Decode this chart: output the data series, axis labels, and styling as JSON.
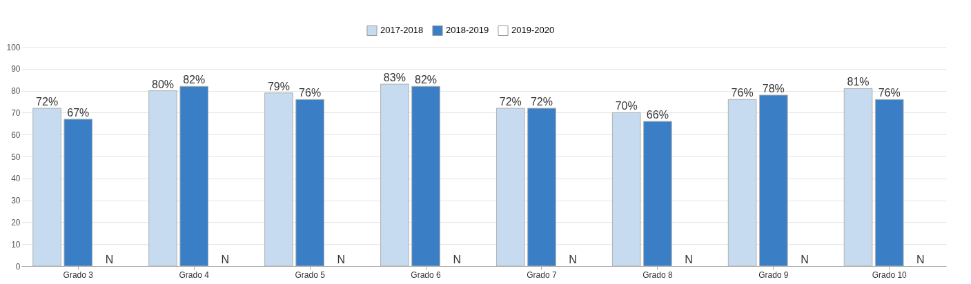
{
  "chart_data": {
    "type": "bar",
    "categories": [
      "Grado 3",
      "Grado 4",
      "Grado 5",
      "Grado 6",
      "Grado 7",
      "Grado 8",
      "Grado 9",
      "Grado 10"
    ],
    "series": [
      {
        "name": "2017-2018",
        "color": "#c6dbef",
        "values": [
          72,
          80,
          79,
          83,
          72,
          70,
          76,
          81
        ],
        "value_labels": [
          "72%",
          "80%",
          "79%",
          "83%",
          "72%",
          "70%",
          "76%",
          "81%"
        ]
      },
      {
        "name": "2018-2019",
        "color": "#3a7fc6",
        "values": [
          67,
          82,
          76,
          82,
          72,
          66,
          78,
          76
        ],
        "value_labels": [
          "67%",
          "82%",
          "76%",
          "82%",
          "72%",
          "66%",
          "78%",
          "76%"
        ]
      },
      {
        "name": "2019-2020",
        "color": "#ffffff",
        "values": [
          null,
          null,
          null,
          null,
          null,
          null,
          null,
          null
        ],
        "value_labels": [
          "N",
          "N",
          "N",
          "N",
          "N",
          "N",
          "N",
          "N"
        ]
      }
    ],
    "ylim": [
      0,
      100
    ],
    "yticks": [
      0,
      10,
      20,
      30,
      40,
      50,
      60,
      70,
      80,
      90,
      100
    ],
    "grid": "y",
    "legend": "top"
  }
}
